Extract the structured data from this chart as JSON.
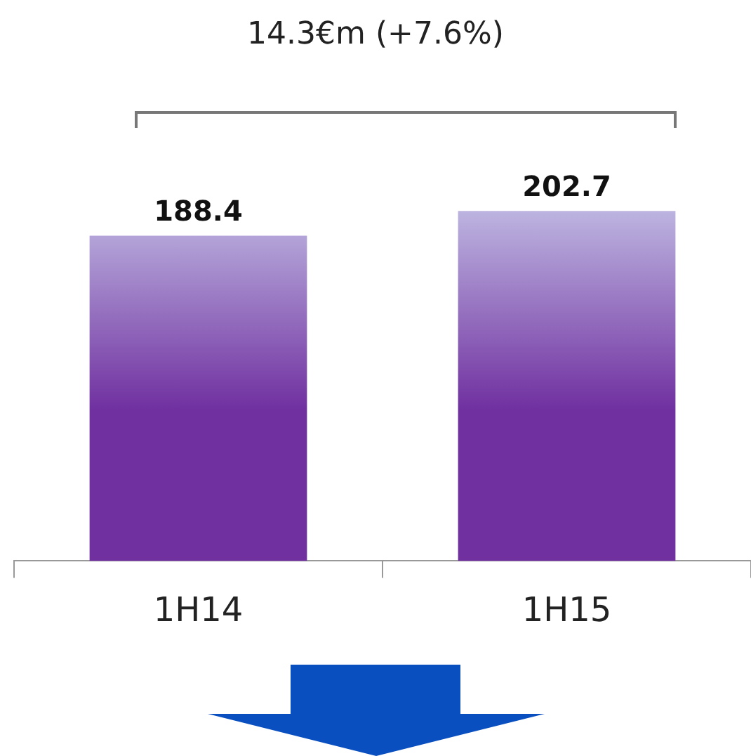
{
  "chart_data": {
    "type": "bar",
    "categories": [
      "1H14",
      "1H15"
    ],
    "values": [
      188.4,
      202.7
    ],
    "color": "#7030a0",
    "data_labels": true,
    "tick_labels": "x",
    "annotations": [
      "14.3€m  (+7.6%)"
    ]
  }
}
